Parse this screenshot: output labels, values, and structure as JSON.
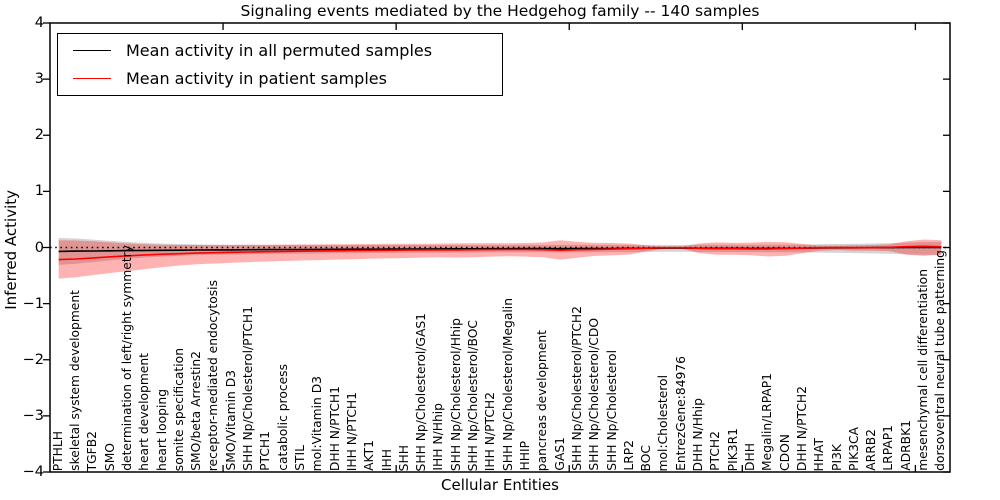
{
  "title": "Signaling events mediated by the Hedgehog family -- 140 samples",
  "legend": {
    "items": [
      {
        "label": "Mean activity in all permuted samples",
        "color": "#000000"
      },
      {
        "label": "Mean activity in patient samples",
        "color": "#ff0000"
      }
    ]
  },
  "colors": {
    "patient_band_fill": "rgba(255,0,0,0.30)",
    "permuted_band_fill": "rgba(120,120,120,0.32)",
    "zero_line": "#000000",
    "frame": "#000000"
  },
  "chart_data": {
    "type": "line",
    "title": "Signaling events mediated by the Hedgehog family -- 140 samples",
    "xlabel": "Cellular Entities",
    "ylabel": "Inferred Activity",
    "ylim": [
      -4,
      4
    ],
    "yticks": [
      4,
      3,
      2,
      1,
      0,
      -1,
      -2,
      -3,
      -4
    ],
    "grid": false,
    "legend_position": "upper left",
    "zero_reference_line": "dotted",
    "categories": [
      "PTHLH",
      "skeletal system development",
      "TGFB2",
      "SMO",
      "determination of left/right symmetry",
      "heart development",
      "heart looping",
      "somite specification",
      "SMO/beta Arrestin2",
      "receptor-mediated endocytosis",
      "SMO/Vitamin D3",
      "SHH Np/Cholesterol/PTCH1",
      "PTCH1",
      "catabolic process",
      "STIL",
      "mol:Vitamin D3",
      "DHH N/PTCH1",
      "IHH N/PTCH1",
      "AKT1",
      "IHH",
      "SHH",
      "SHH Np/Cholesterol/GAS1",
      "IHH N/Hhip",
      "SHH Np/Cholesterol/Hhip",
      "SHH Np/Cholesterol/BOC",
      "IHH N/PTCH2",
      "SHH Np/Cholesterol/Megalin",
      "HHIP",
      "pancreas development",
      "GAS1",
      "SHH Np/Cholesterol/PTCH2",
      "SHH Np/Cholesterol/CDO",
      "SHH Np/Cholesterol",
      "LRP2",
      "BOC",
      "mol:Cholesterol",
      "EntrezGene:84976",
      "DHH N/Hhip",
      "PTCH2",
      "PIK3R1",
      "DHH",
      "Megalin/LRPAP1",
      "CDON",
      "DHH N/PTCH2",
      "HHAT",
      "PI3K",
      "PIK3CA",
      "ARRB2",
      "LRPAP1",
      "ADRBK1",
      "mesenchymal cell differentiation",
      "dorsoventral neural tube patterning"
    ],
    "series": [
      {
        "name": "Mean activity in all permuted samples",
        "color": "#000000",
        "values": [
          -0.07,
          -0.065,
          -0.062,
          -0.058,
          -0.055,
          -0.052,
          -0.05,
          -0.048,
          -0.045,
          -0.043,
          -0.042,
          -0.04,
          -0.038,
          -0.036,
          -0.035,
          -0.033,
          -0.032,
          -0.03,
          -0.03,
          -0.028,
          -0.027,
          -0.026,
          -0.025,
          -0.024,
          -0.023,
          -0.022,
          -0.021,
          -0.02,
          -0.02,
          -0.022,
          -0.02,
          -0.018,
          -0.017,
          -0.015,
          -0.012,
          -0.01,
          -0.01,
          -0.013,
          -0.015,
          -0.015,
          -0.016,
          -0.016,
          -0.014,
          -0.012,
          -0.008,
          -0.006,
          -0.005,
          -0.004,
          -0.002,
          0,
          0.002,
          0.002
        ]
      },
      {
        "name": "Mean activity in patient samples",
        "color": "#ff0000",
        "values": [
          -0.215,
          -0.205,
          -0.185,
          -0.165,
          -0.148,
          -0.132,
          -0.12,
          -0.11,
          -0.1,
          -0.092,
          -0.085,
          -0.08,
          -0.075,
          -0.07,
          -0.066,
          -0.062,
          -0.058,
          -0.055,
          -0.052,
          -0.05,
          -0.047,
          -0.044,
          -0.042,
          -0.043,
          -0.04,
          -0.037,
          -0.035,
          -0.036,
          -0.04,
          -0.048,
          -0.04,
          -0.033,
          -0.028,
          -0.022,
          -0.012,
          -0.003,
          -0.003,
          -0.015,
          -0.022,
          -0.022,
          -0.025,
          -0.026,
          -0.018,
          -0.012,
          -0.004,
          -0.002,
          -0.003,
          -0.003,
          0.003,
          0.015,
          0.022,
          0.012
        ]
      }
    ],
    "bands": [
      {
        "name": "permuted samples range",
        "upper": [
          0.17,
          0.16,
          0.14,
          0.118,
          0.098,
          0.082,
          0.07,
          0.062,
          0.056,
          0.052,
          0.05,
          0.048,
          0.047,
          0.046,
          0.046,
          0.045,
          0.045,
          0.045,
          0.045,
          0.045,
          0.045,
          0.045,
          0.045,
          0.045,
          0.045,
          0.045,
          0.045,
          0.046,
          0.047,
          0.05,
          0.048,
          0.046,
          0.046,
          0.046,
          0.047,
          0.047,
          0.046,
          0.048,
          0.05,
          0.05,
          0.05,
          0.052,
          0.052,
          0.052,
          0.058,
          0.062,
          0.068,
          0.072,
          0.078,
          0.088,
          0.098,
          0.1
        ],
        "lower": [
          -0.31,
          -0.29,
          -0.26,
          -0.23,
          -0.2,
          -0.178,
          -0.16,
          -0.148,
          -0.138,
          -0.13,
          -0.124,
          -0.12,
          -0.116,
          -0.112,
          -0.11,
          -0.107,
          -0.104,
          -0.102,
          -0.1,
          -0.098,
          -0.096,
          -0.094,
          -0.092,
          -0.09,
          -0.089,
          -0.088,
          -0.086,
          -0.085,
          -0.085,
          -0.088,
          -0.086,
          -0.084,
          -0.082,
          -0.08,
          -0.078,
          -0.076,
          -0.075,
          -0.078,
          -0.08,
          -0.081,
          -0.082,
          -0.084,
          -0.083,
          -0.083,
          -0.09,
          -0.095,
          -0.1,
          -0.105,
          -0.11,
          -0.12,
          -0.128,
          -0.13
        ]
      },
      {
        "name": "patient samples range",
        "upper": [
          0.13,
          0.125,
          0.11,
          0.09,
          0.072,
          0.058,
          0.05,
          0.045,
          0.044,
          0.044,
          0.045,
          0.048,
          0.05,
          0.052,
          0.054,
          0.056,
          0.058,
          0.06,
          0.063,
          0.066,
          0.068,
          0.068,
          0.07,
          0.073,
          0.075,
          0.078,
          0.075,
          0.08,
          0.09,
          0.13,
          0.1,
          0.082,
          0.08,
          0.07,
          0.035,
          0.018,
          0.018,
          0.072,
          0.09,
          0.082,
          0.088,
          0.1,
          0.095,
          0.062,
          0.035,
          0.033,
          0.04,
          0.045,
          0.055,
          0.11,
          0.142,
          0.13
        ],
        "lower": [
          -0.555,
          -0.53,
          -0.49,
          -0.455,
          -0.42,
          -0.385,
          -0.35,
          -0.32,
          -0.3,
          -0.285,
          -0.272,
          -0.26,
          -0.25,
          -0.24,
          -0.232,
          -0.224,
          -0.216,
          -0.208,
          -0.2,
          -0.195,
          -0.188,
          -0.18,
          -0.175,
          -0.18,
          -0.172,
          -0.163,
          -0.156,
          -0.162,
          -0.172,
          -0.22,
          -0.18,
          -0.15,
          -0.14,
          -0.125,
          -0.068,
          -0.024,
          -0.024,
          -0.1,
          -0.13,
          -0.128,
          -0.138,
          -0.16,
          -0.148,
          -0.1,
          -0.055,
          -0.045,
          -0.055,
          -0.055,
          -0.065,
          -0.13,
          -0.15,
          -0.128
        ]
      }
    ]
  }
}
